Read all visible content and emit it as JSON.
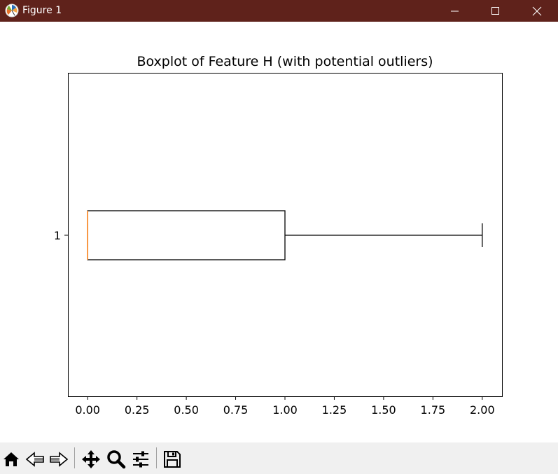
{
  "window": {
    "title": "Figure 1",
    "titlebar_color": "#5f221b",
    "controls": [
      "minimize-icon",
      "maximize-icon",
      "close-icon"
    ]
  },
  "toolbar": {
    "tools": [
      "home-icon",
      "back-arrow-icon",
      "forward-arrow-icon",
      "pan-move-icon",
      "zoom-magnifier-icon",
      "configure-subplots-icon",
      "save-floppy-icon"
    ]
  },
  "chart_data": {
    "type": "boxplot",
    "orientation": "horizontal",
    "title": "Boxplot of Feature H (with potential outliers)",
    "xlabel": "",
    "ylabel": "",
    "xlim": [
      -0.1,
      2.1
    ],
    "xticks": [
      "0.00",
      "0.25",
      "0.50",
      "0.75",
      "1.00",
      "1.25",
      "1.50",
      "1.75",
      "2.00"
    ],
    "xtick_values": [
      0,
      0.25,
      0.5,
      0.75,
      1.0,
      1.25,
      1.5,
      1.75,
      2.0
    ],
    "yticks": [
      "1"
    ],
    "grid": false,
    "legend": "none",
    "boxes": [
      {
        "label": "1",
        "whisker_low": 0.0,
        "q1": 0.0,
        "median": 0.0,
        "q3": 1.0,
        "whisker_high": 2.0,
        "outliers": []
      }
    ],
    "colors": {
      "box": "#000000",
      "median": "#ff7f0e"
    }
  }
}
